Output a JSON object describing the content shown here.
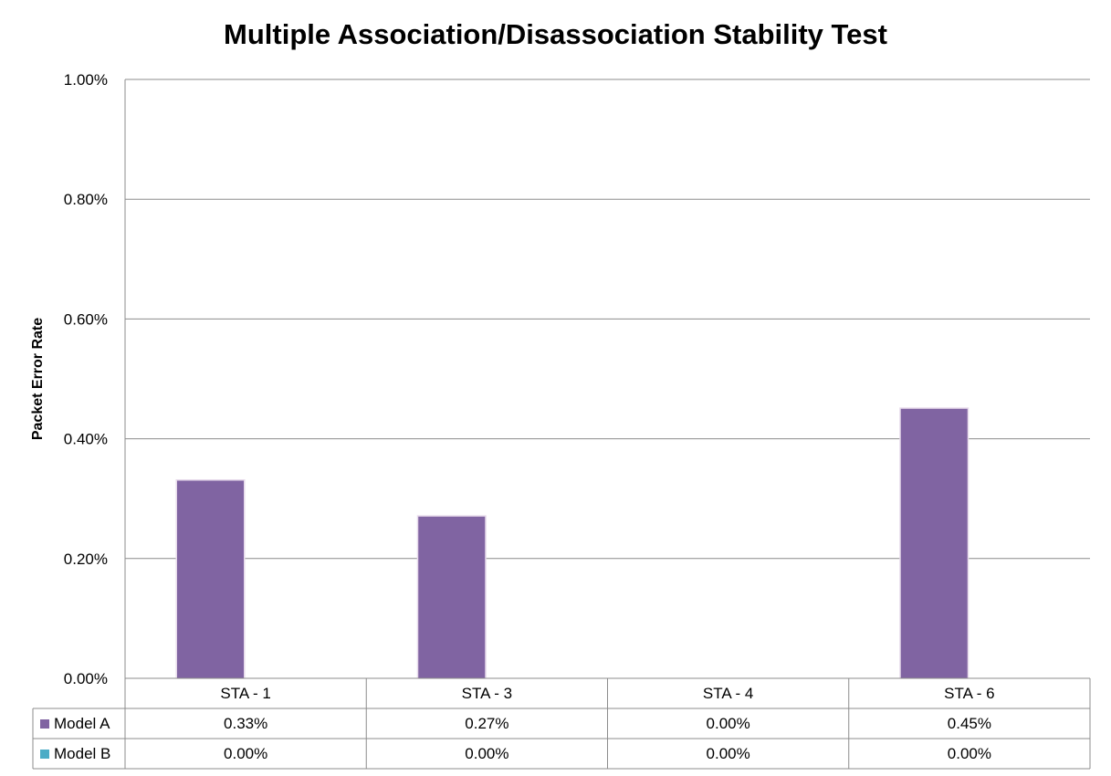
{
  "chart_data": {
    "type": "bar",
    "title": "Multiple Association/Disassociation Stability Test",
    "ylabel": "Packet Error Rate",
    "xlabel": "",
    "ylim": [
      0,
      1.0
    ],
    "yticks": [
      "0.00%",
      "0.20%",
      "0.40%",
      "0.60%",
      "0.80%",
      "1.00%"
    ],
    "ytick_values": [
      0,
      0.2,
      0.4,
      0.6,
      0.8,
      1.0
    ],
    "grid": true,
    "legend": "data-table",
    "categories": [
      "STA - 1",
      "STA - 3",
      "STA - 4",
      "STA - 6"
    ],
    "series": [
      {
        "name": "Model A",
        "color": "#8064a2",
        "values": [
          0.33,
          0.27,
          0.0,
          0.45
        ],
        "labels": [
          "0.33%",
          "0.27%",
          "0.00%",
          "0.45%"
        ]
      },
      {
        "name": "Model B",
        "color": "#4bacc6",
        "values": [
          0.0,
          0.0,
          0.0,
          0.0
        ],
        "labels": [
          "0.00%",
          "0.00%",
          "0.00%",
          "0.00%"
        ]
      }
    ]
  }
}
